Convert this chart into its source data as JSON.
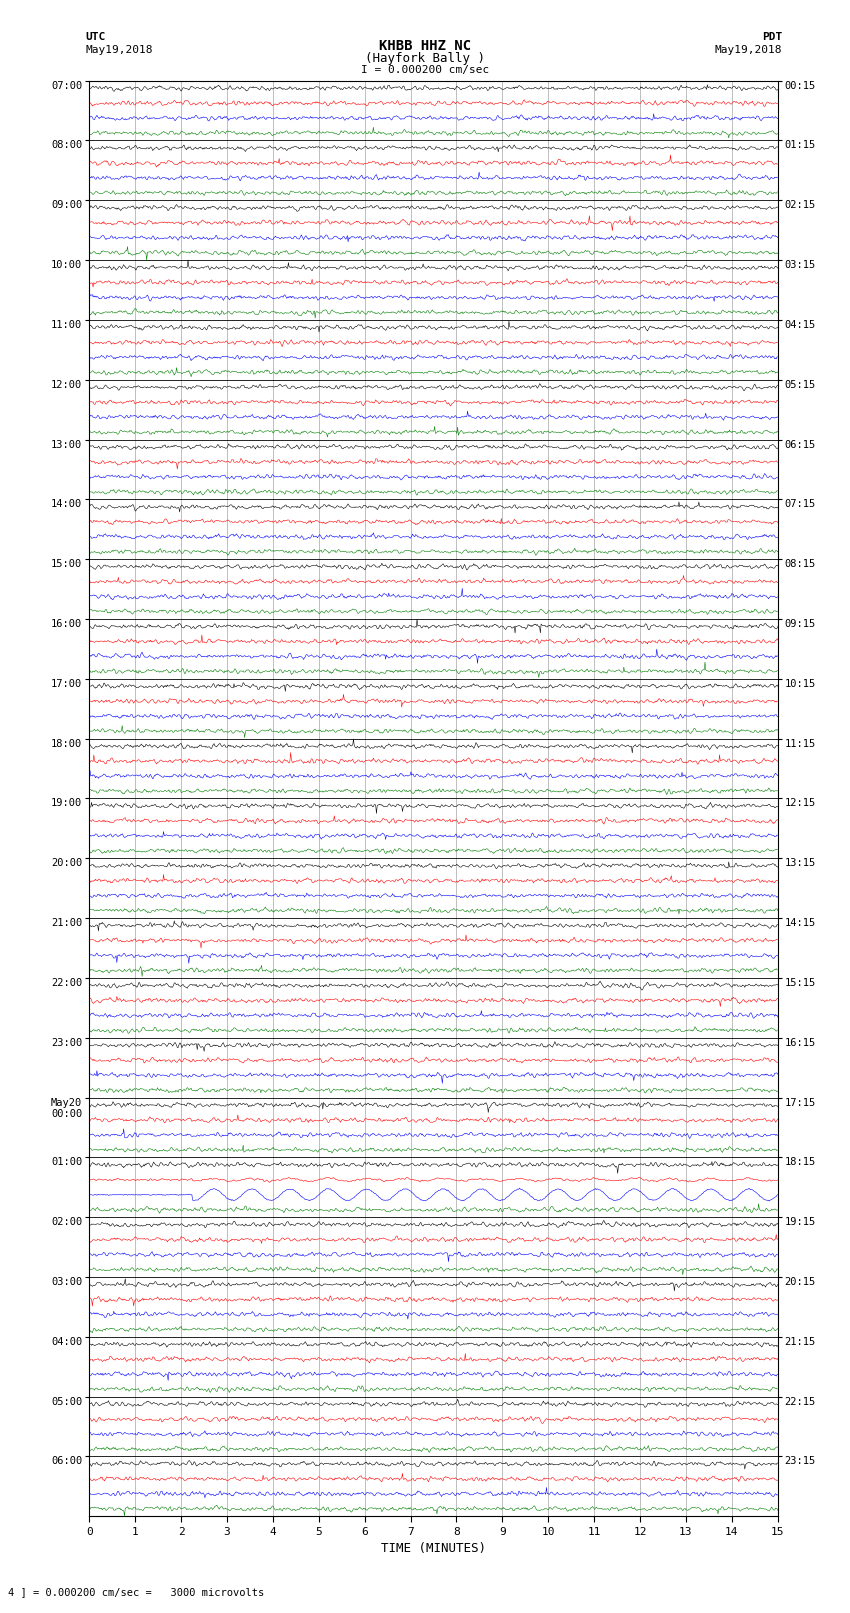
{
  "title_line1": "KHBB HHZ NC",
  "title_line2": "(Hayfork Bally )",
  "title_scale": "I = 0.000200 cm/sec",
  "left_label_line1": "UTC",
  "left_label_line2": "May19,2018",
  "right_label_line1": "PDT",
  "right_label_line2": "May19,2018",
  "xlabel": "TIME (MINUTES)",
  "footnote": "4 ] = 0.000200 cm/sec =   3000 microvolts",
  "bg_color": "#ffffff",
  "trace_colors": [
    "black",
    "red",
    "blue",
    "green"
  ],
  "fig_width": 8.5,
  "fig_height": 16.13,
  "dpi": 100,
  "x_min": 0,
  "x_max": 15,
  "utc_labels": [
    "07:00",
    "08:00",
    "09:00",
    "10:00",
    "11:00",
    "12:00",
    "13:00",
    "14:00",
    "15:00",
    "16:00",
    "17:00",
    "18:00",
    "19:00",
    "20:00",
    "21:00",
    "22:00",
    "23:00",
    "May20\n00:00",
    "01:00",
    "02:00",
    "03:00",
    "04:00",
    "05:00",
    "06:00"
  ],
  "pdt_labels": [
    "00:15",
    "01:15",
    "02:15",
    "03:15",
    "04:15",
    "05:15",
    "06:15",
    "07:15",
    "08:15",
    "09:15",
    "10:15",
    "11:15",
    "12:15",
    "13:15",
    "14:15",
    "15:15",
    "16:15",
    "17:15",
    "18:15",
    "19:15",
    "20:15",
    "21:15",
    "22:15",
    "23:15"
  ],
  "noise_amplitude": 0.12,
  "special_hour": 18,
  "special_color_idx": 2,
  "special_amplitude": 0.38,
  "special_freq": 1.2
}
